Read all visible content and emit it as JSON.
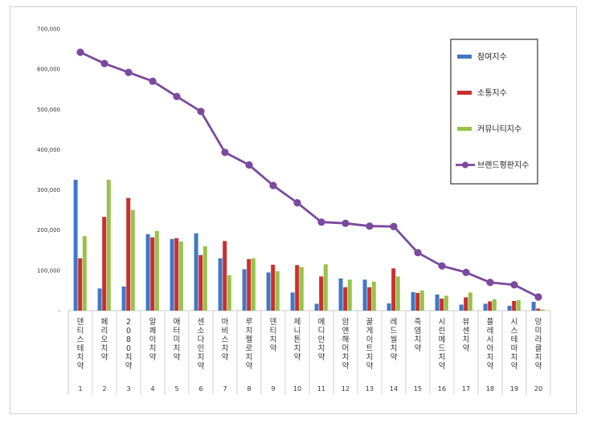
{
  "chart_data": {
    "type": "bar",
    "title": "",
    "xlabel": "",
    "ylabel": "",
    "ylim": [
      0,
      700000
    ],
    "y_ticks": [
      "-",
      "100,000",
      "200,000",
      "300,000",
      "400,000",
      "500,000",
      "600,000",
      "700,000"
    ],
    "ranks": [
      "1",
      "2",
      "3",
      "4",
      "5",
      "6",
      "7",
      "8",
      "9",
      "10",
      "11",
      "12",
      "13",
      "14",
      "15",
      "16",
      "17",
      "18",
      "19",
      "20"
    ],
    "categories": [
      "덴티스테치약",
      "페리오치약",
      "2080치약",
      "알쾌이치약",
      "애터미치약",
      "센소다인치약",
      "마비스치약",
      "루치펠로치약",
      "덴티치약",
      "제니튼치약",
      "메디안치약",
      "암앤해머치약",
      "꿀게이트치약",
      "레드씰치약",
      "죽염치약",
      "시린메드치약",
      "뷰센치약",
      "플레시아치약",
      "시스테마치약",
      "망미라클치약"
    ],
    "series": [
      {
        "name": "참여지수",
        "kind": "bar",
        "color": "#3f78c6",
        "values": [
          325000,
          55000,
          60000,
          190000,
          178000,
          192000,
          130000,
          103000,
          95000,
          45000,
          17000,
          80000,
          77000,
          18000,
          46000,
          40000,
          15000,
          17000,
          12000,
          22000
        ]
      },
      {
        "name": "소통지수",
        "kind": "bar",
        "color": "#c8302f",
        "values": [
          130000,
          233000,
          280000,
          182000,
          180000,
          138000,
          173000,
          128000,
          114000,
          113000,
          85000,
          58000,
          58000,
          105000,
          44000,
          30000,
          33000,
          23000,
          24000,
          5000
        ]
      },
      {
        "name": "커뮤니티지수",
        "kind": "bar",
        "color": "#98c24a",
        "values": [
          185000,
          325000,
          250000,
          198000,
          172000,
          160000,
          88000,
          130000,
          98000,
          108000,
          115000,
          77000,
          72000,
          85000,
          50000,
          37000,
          45000,
          28000,
          26000,
          3000
        ]
      },
      {
        "name": "브랜드평판지수",
        "kind": "line",
        "color": "#7a4a9e",
        "values": [
          642000,
          614000,
          592000,
          570000,
          532000,
          495000,
          393000,
          362000,
          311000,
          268000,
          220000,
          217000,
          210000,
          209000,
          144000,
          111000,
          95000,
          70000,
          64000,
          34000
        ]
      }
    ],
    "legend_position": "top-right",
    "grid": false
  }
}
